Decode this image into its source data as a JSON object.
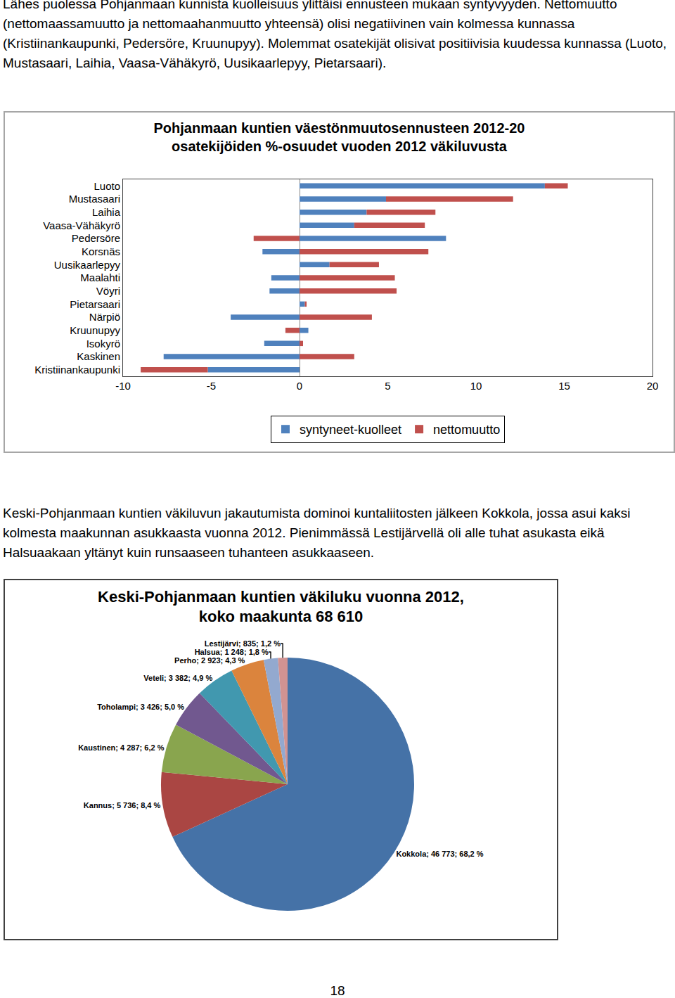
{
  "paragraphs": [
    "Lähes puolessa Pohjanmaan kunnista kuolleisuus ylittäisi ennusteen mukaan syntyvyyden. Nettomuutto (nettomaassamuutto ja nettomaahanmuutto yhteensä) olisi negatiivinen vain kolmessa kunnassa (Kristiinankaupunki, Pedersöre, Kruunupyy). Molemmat osatekijät olisivat positiivisia kuudessa kunnassa (Luoto, Mustasaari, Laihia, Vaasa-Vähäkyrö, Uusikaarlepyy, Pietarsaari).",
    "Keski-Pohjanmaan kuntien väkiluvun jakautumista dominoi kuntaliitosten jälkeen Kokkola, jossa asui kaksi kolmesta maakunnan asukkaasta vuonna 2012. Pienimmässä Lestijärvellä oli alle tuhat asukasta eikä Halsuaakaan yltänyt kuin runsaaseen tuhanteen asukkaaseen."
  ],
  "chart_data": [
    {
      "type": "bar",
      "orientation": "horizontal",
      "stacked": true,
      "title": "Pohjanmaan kuntien väestönmuutosennusteen 2012-20\nosatekijöiden %-osuudet vuoden 2012 väkiluvusta",
      "categories": [
        "Luoto",
        "Mustasaari",
        "Laihia",
        "Vaasa-Vähäkyrö",
        "Pedersöre",
        "Korsnäs",
        "Uusikaarlepyy",
        "Maalahti",
        "Vöyri",
        "Pietarsaari",
        "Närpiö",
        "Kruunupyy",
        "Isokyrö",
        "Kaskinen",
        "Kristiinankaupunki"
      ],
      "series": [
        {
          "name": "syntyneet-kuolleet",
          "color": "#4f81bd",
          "values": [
            13.9,
            4.9,
            3.8,
            3.1,
            8.3,
            -2.1,
            1.7,
            -1.6,
            -1.7,
            0.3,
            -3.9,
            0.5,
            -2.0,
            -7.7,
            -5.2
          ]
        },
        {
          "name": "nettomuutto",
          "color": "#c0504d",
          "values": [
            1.3,
            7.2,
            3.9,
            4.0,
            -2.6,
            7.3,
            2.8,
            5.4,
            5.5,
            0.1,
            4.1,
            -0.8,
            0.2,
            3.1,
            -3.8
          ]
        }
      ],
      "xlim": [
        -10,
        20
      ],
      "xticks": [
        -10,
        -5,
        0,
        5,
        10,
        15,
        20
      ],
      "grid": false,
      "legend": "bottom"
    },
    {
      "type": "pie",
      "title": "Keski-Pohjanmaan kuntien väkiluku vuonna 2012,\nkoko maakunta 68 610",
      "categories": [
        "Kokkola",
        "Kannus",
        "Kaustinen",
        "Toholampi",
        "Veteli",
        "Perho",
        "Halsua",
        "Lestijärvi"
      ],
      "values": [
        46773,
        5736,
        4287,
        3426,
        3382,
        2923,
        1248,
        835
      ],
      "value_labels": [
        "Kokkola; 46 773; 68,2 %",
        "Kannus; 5 736; 8,4 %",
        "Kaustinen; 4 287; 6,2 %",
        "Toholampi; 3 426; 5,0 %",
        "Veteli; 3 382; 4,9 %",
        "Perho; 2 923; 4,3 %",
        "Halsua; 1 248; 1,8 %",
        "Lestijärvi; 835; 1,2 %"
      ],
      "colors": [
        "#4572a7",
        "#aa4643",
        "#89a54e",
        "#71588f",
        "#4198af",
        "#db843d",
        "#93a9cf",
        "#d19392"
      ],
      "data_labels": true,
      "legend": false
    }
  ],
  "page_number": "18"
}
